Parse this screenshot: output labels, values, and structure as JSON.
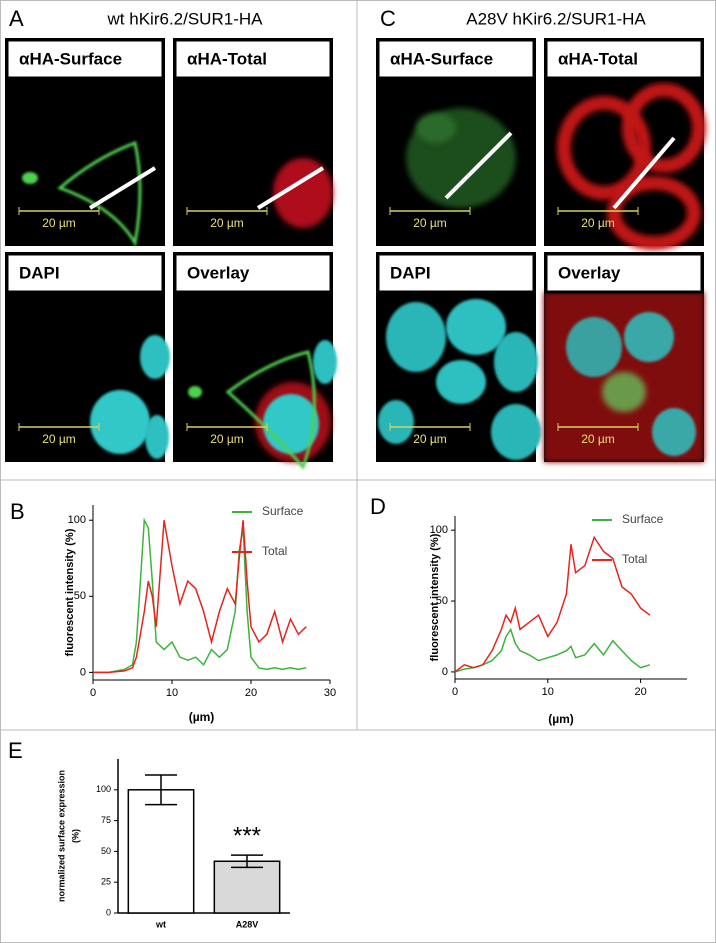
{
  "panels": [
    {
      "label": "A",
      "title": "wt hKir6.2/SUR1-HA",
      "tiles": [
        {
          "label": "αHA-Surface",
          "scale": "20 µm"
        },
        {
          "label": "αHA-Total",
          "scale": "20 µm"
        },
        {
          "label": "DAPI",
          "scale": "20 µm"
        },
        {
          "label": "Overlay",
          "scale": "20 µm"
        }
      ]
    },
    {
      "label": "C",
      "title": "A28V hKir6.2/SUR1-HA",
      "tiles": [
        {
          "label": "αHA-Surface",
          "scale": "20 µm"
        },
        {
          "label": "αHA-Total",
          "scale": "20 µm"
        },
        {
          "label": "DAPI",
          "scale": "20 µm"
        },
        {
          "label": "Overlay",
          "scale": "20 µm"
        }
      ]
    }
  ],
  "chart_data": [
    {
      "type": "line",
      "label": "B",
      "ylabel": "fluorescent intensity (%)",
      "xlabel": "(µm)",
      "x": [
        0,
        2,
        4,
        5,
        5.5,
        6,
        6.5,
        7,
        7.5,
        8,
        9,
        10,
        11,
        12,
        13,
        14,
        15,
        16,
        17,
        18,
        18.5,
        19,
        19.5,
        20,
        21,
        22,
        23,
        24,
        25,
        26,
        27
      ],
      "series": [
        {
          "name": "Surface",
          "color": "#3cb43c",
          "values": [
            0,
            0,
            2,
            5,
            20,
            60,
            100,
            95,
            60,
            20,
            15,
            20,
            10,
            8,
            10,
            5,
            15,
            10,
            15,
            40,
            80,
            95,
            40,
            10,
            3,
            2,
            3,
            2,
            3,
            2,
            3
          ]
        },
        {
          "name": "Total",
          "color": "#e8231e",
          "values": [
            0,
            0,
            1,
            3,
            10,
            25,
            40,
            60,
            50,
            30,
            100,
            70,
            45,
            60,
            55,
            40,
            20,
            40,
            55,
            45,
            75,
            100,
            60,
            30,
            20,
            25,
            40,
            20,
            35,
            25,
            30
          ]
        }
      ],
      "xlim": [
        0,
        30
      ],
      "xticks": [
        0,
        10,
        20,
        30
      ],
      "ylim": [
        -5,
        110
      ],
      "yticks": [
        0,
        50,
        100
      ]
    },
    {
      "type": "line",
      "label": "D",
      "ylabel": "fluorescent intensity (%)",
      "xlabel": "(µm)",
      "x": [
        0,
        1,
        2,
        3,
        4,
        5,
        5.5,
        6,
        6.5,
        7,
        8,
        9,
        10,
        11,
        12,
        12.5,
        13,
        14,
        15,
        16,
        17,
        18,
        19,
        20,
        21
      ],
      "series": [
        {
          "name": "Surface",
          "color": "#3cb43c",
          "values": [
            0,
            2,
            3,
            5,
            8,
            15,
            25,
            30,
            20,
            15,
            12,
            8,
            10,
            12,
            15,
            18,
            10,
            12,
            20,
            12,
            22,
            15,
            8,
            3,
            5
          ]
        },
        {
          "name": "Total",
          "color": "#e8231e",
          "values": [
            0,
            5,
            3,
            5,
            15,
            30,
            40,
            35,
            45,
            30,
            35,
            40,
            25,
            35,
            55,
            90,
            70,
            75,
            95,
            85,
            80,
            60,
            55,
            45,
            40
          ]
        }
      ],
      "xlim": [
        0,
        25
      ],
      "xticks": [
        0,
        10,
        20
      ],
      "ylim": [
        -5,
        110
      ],
      "yticks": [
        0,
        50,
        100
      ]
    },
    {
      "type": "bar",
      "label": "E",
      "ylabel": [
        "normalized surface expression",
        "(%)"
      ],
      "categories": [
        "wt",
        "A28V"
      ],
      "values": [
        100,
        42
      ],
      "errors": [
        12,
        5
      ],
      "colors": [
        "#ffffff",
        "#d9d9d9"
      ],
      "annotation": "***",
      "ylim": [
        0,
        125
      ],
      "yticks": [
        0,
        25,
        50,
        75,
        100
      ]
    }
  ]
}
